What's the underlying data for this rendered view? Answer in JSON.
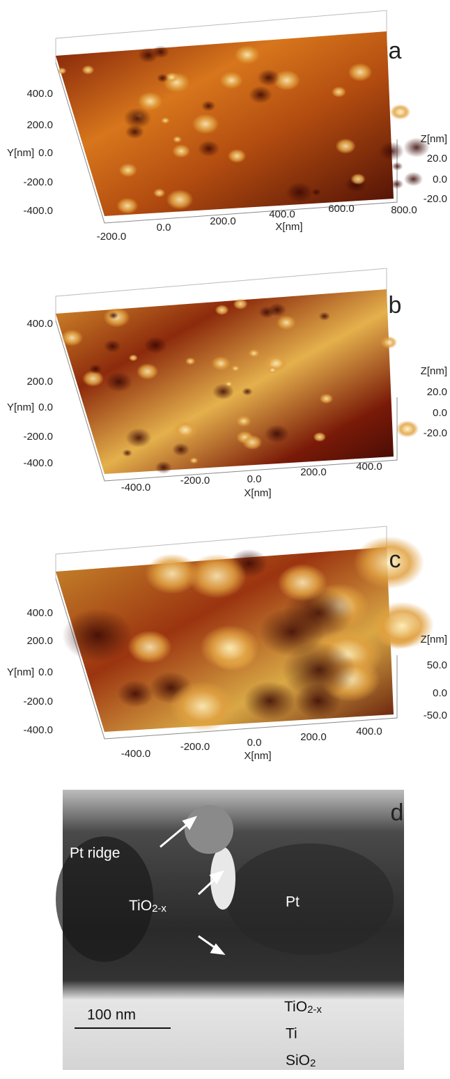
{
  "panels": [
    {
      "label": "a",
      "y_title": "Y[nm]",
      "y_ticks": [
        "400.0",
        "200.0",
        "0.0",
        "-200.0",
        "-400.0"
      ],
      "x_title": "X[nm]",
      "x_ticks": [
        "-200.0",
        "0.0",
        "200.0",
        "400.0",
        "600.0",
        "800.0"
      ],
      "z_title": "Z[nm]",
      "z_ticks": [
        "20.0",
        "0.0",
        "-20.0"
      ]
    },
    {
      "label": "b",
      "y_title": "Y[nm]",
      "y_ticks": [
        "400.0",
        "200.0",
        "0.0",
        "-200.0",
        "-400.0"
      ],
      "x_title": "X[nm]",
      "x_ticks": [
        "-400.0",
        "-200.0",
        "0.0",
        "200.0",
        "400.0"
      ],
      "z_title": "Z[nm]",
      "z_ticks": [
        "20.0",
        "0.0",
        "-20.0"
      ]
    },
    {
      "label": "c",
      "y_title": "Y[nm]",
      "y_ticks": [
        "400.0",
        "200.0",
        "0.0",
        "-200.0",
        "-400.0"
      ],
      "x_title": "X[nm]",
      "x_ticks": [
        "-400.0",
        "-200.0",
        "0.0",
        "200.0",
        "400.0"
      ],
      "z_title": "Z[nm]",
      "z_ticks": [
        "50.0",
        "0.0",
        "-50.0"
      ]
    }
  ],
  "tem": {
    "label": "d",
    "pt_ridge": "Pt ridge",
    "tio_upper": {
      "text": "TiO",
      "sub": "2-x"
    },
    "pt": "Pt",
    "tio_lower": {
      "text": "TiO",
      "sub": "2-x"
    },
    "ti": "Ti",
    "sio2": {
      "text": "SiO",
      "sub": "2"
    },
    "scale": "100 nm"
  }
}
